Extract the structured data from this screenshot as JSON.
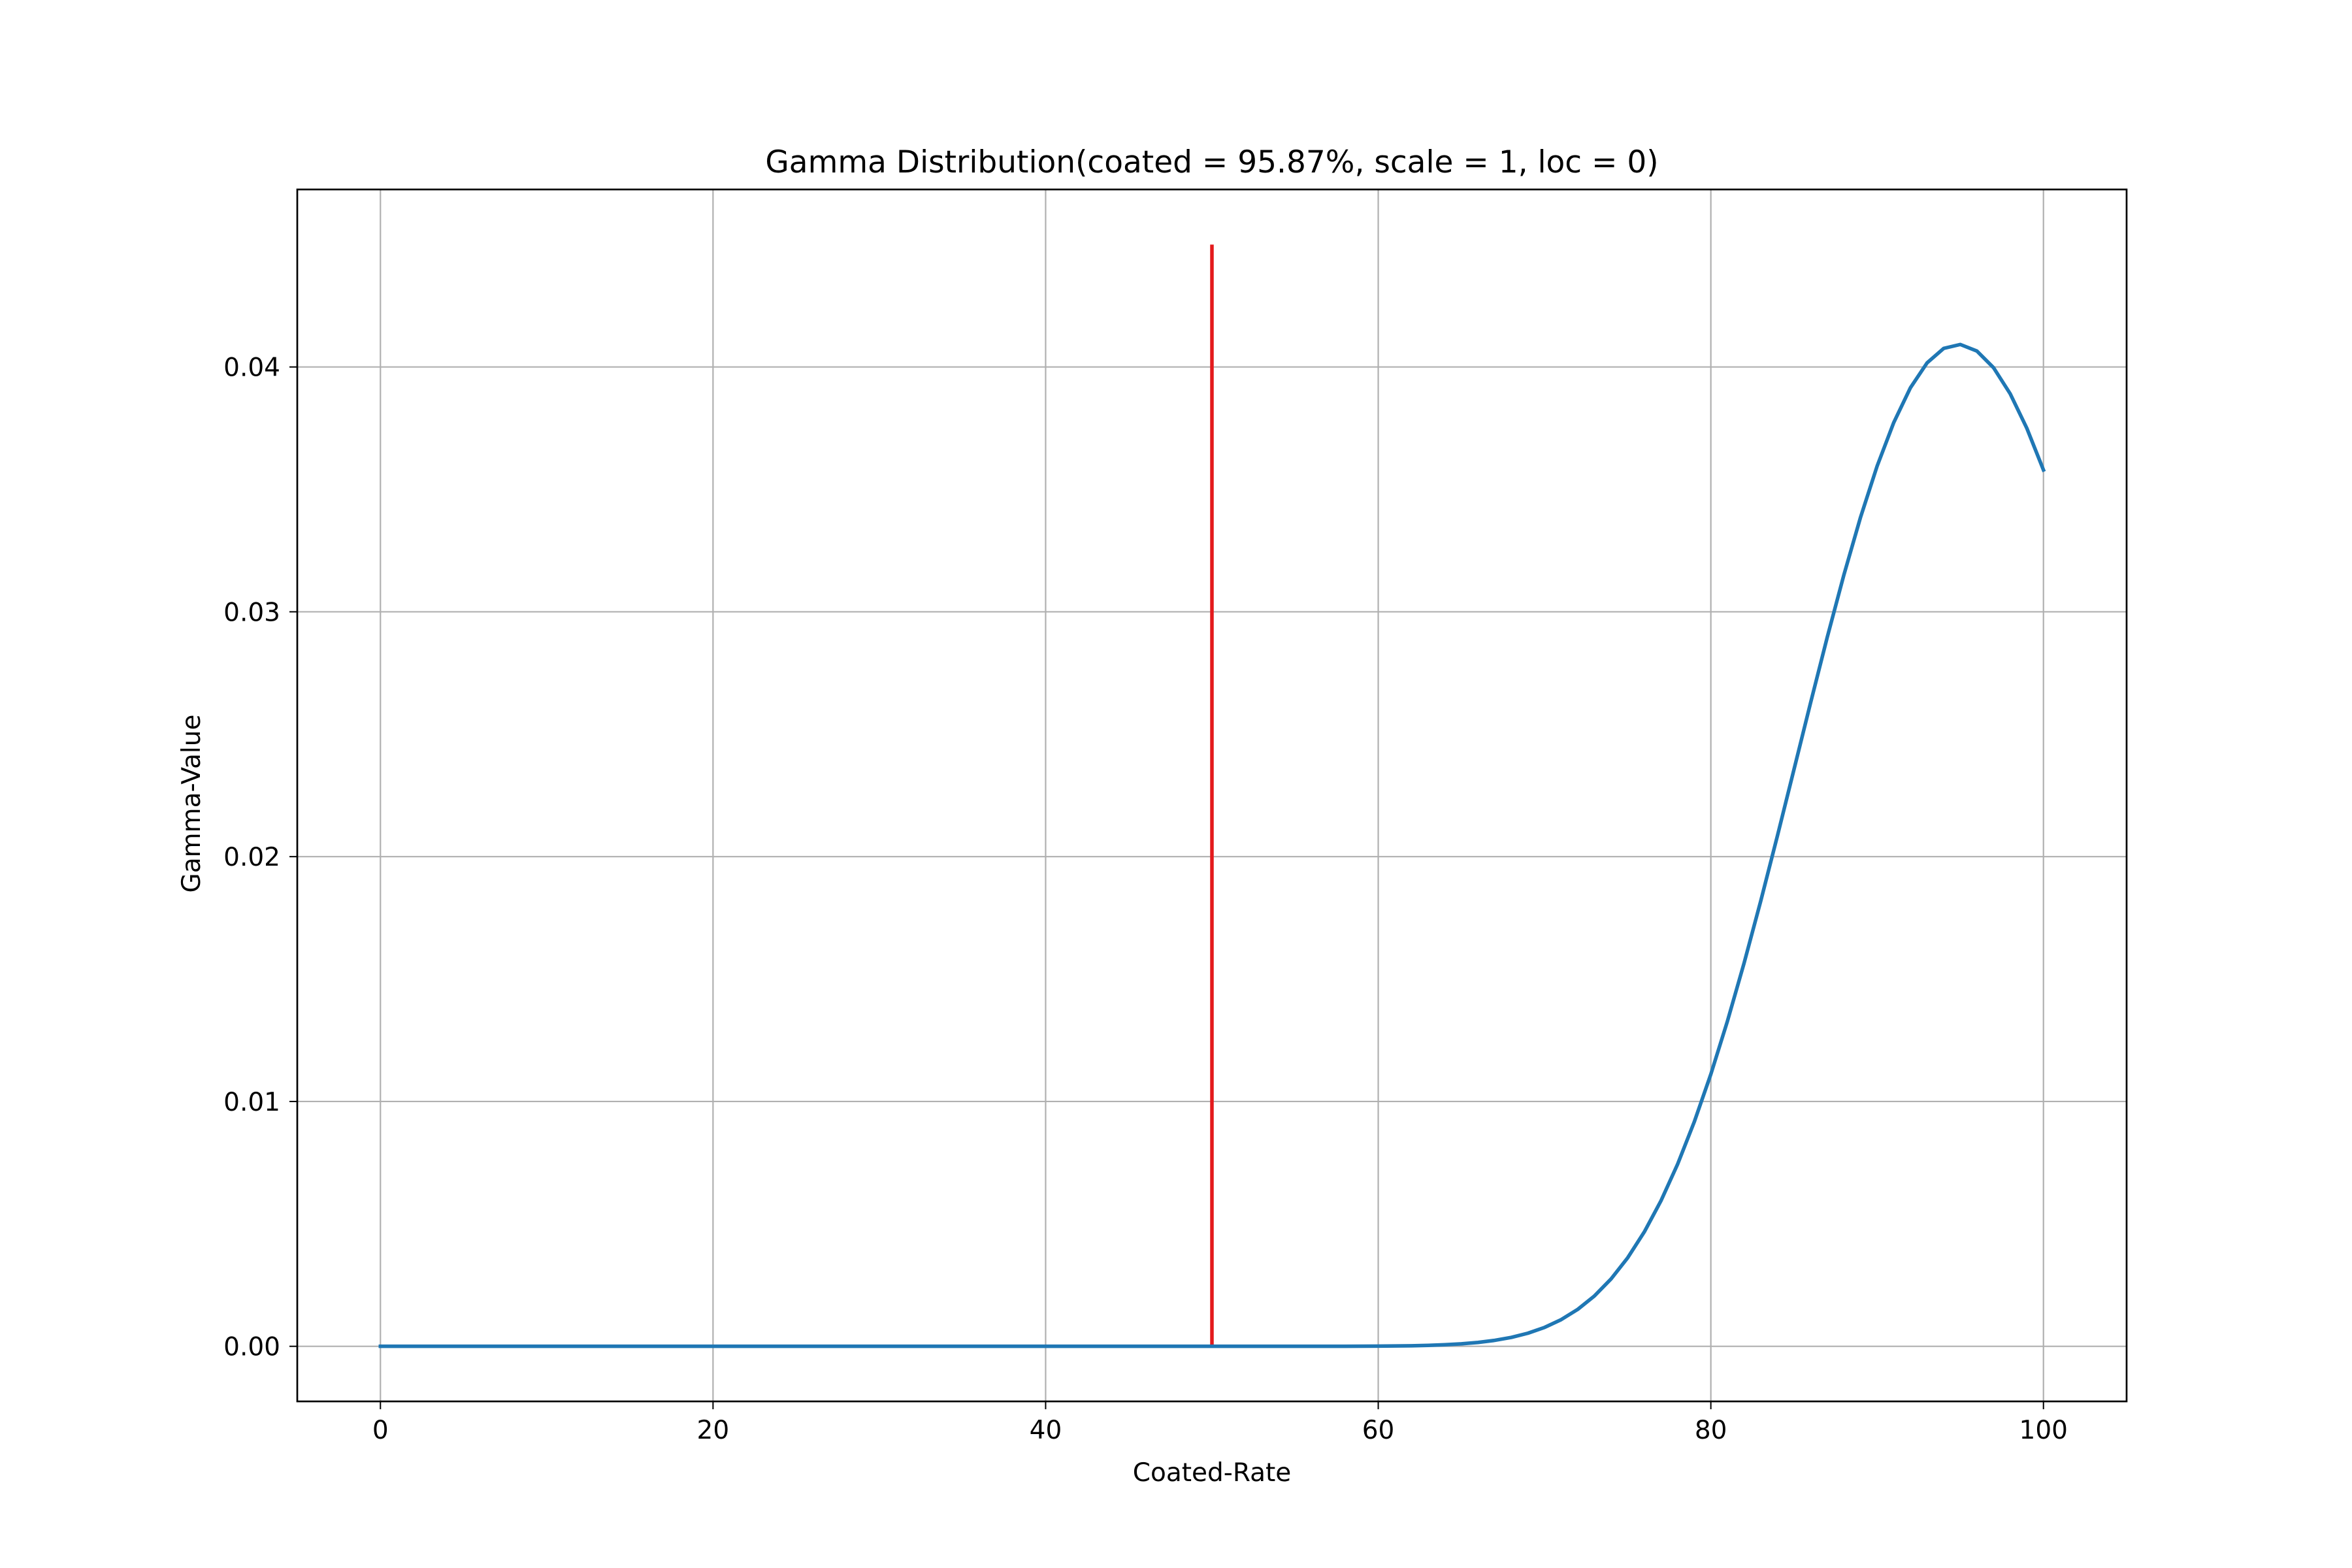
{
  "chart_data": {
    "type": "line",
    "title": "Gamma Distribution(coated = 95.87%, scale = 1, loc = 0)",
    "xlabel": "Coated-Rate",
    "ylabel": "Gamma-Value",
    "xlim": [
      -5,
      105
    ],
    "ylim": [
      -0.00225,
      0.04725
    ],
    "xticks": [
      0,
      20,
      40,
      60,
      80,
      100
    ],
    "xtick_labels": [
      "0",
      "20",
      "40",
      "60",
      "80",
      "100"
    ],
    "yticks": [
      0.0,
      0.01,
      0.02,
      0.03,
      0.04
    ],
    "ytick_labels": [
      "0.00",
      "0.01",
      "0.02",
      "0.03",
      "0.04"
    ],
    "grid": true,
    "legend": "none",
    "series": [
      {
        "color": "#1f77b4",
        "distribution": "gamma",
        "shape": 95.87,
        "scale": 1,
        "loc": 0,
        "x_start": 0,
        "x_end": 100,
        "x_step": 1
      }
    ],
    "vlines": [
      {
        "x": 50,
        "y0": 0,
        "y1": 0.045,
        "color": "#e41a1c"
      }
    ]
  }
}
